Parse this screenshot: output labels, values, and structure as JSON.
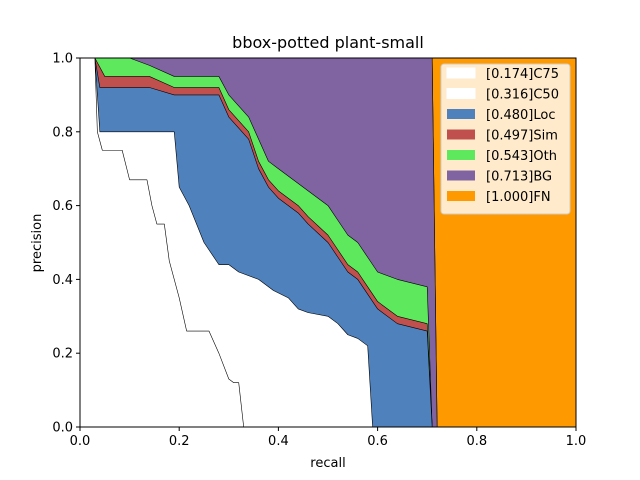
{
  "chart_data": {
    "type": "area",
    "title": "bbox-potted plant-small",
    "xlabel": "recall",
    "ylabel": "precision",
    "xlim": [
      0,
      1
    ],
    "ylim": [
      0,
      1
    ],
    "xticks": [
      "0.0",
      "0.2",
      "0.4",
      "0.6",
      "0.8",
      "1.0"
    ],
    "yticks": [
      "0.0",
      "0.2",
      "0.4",
      "0.6",
      "0.8",
      "1.0"
    ],
    "grid": false,
    "legend_position": "top-right",
    "series": [
      {
        "name": "[0.174]C75",
        "color": "#ffffff",
        "points": [
          [
            0.03,
            1.0
          ],
          [
            0.035,
            0.8
          ],
          [
            0.045,
            0.75
          ],
          [
            0.085,
            0.75
          ],
          [
            0.1,
            0.67
          ],
          [
            0.135,
            0.67
          ],
          [
            0.145,
            0.6
          ],
          [
            0.155,
            0.55
          ],
          [
            0.17,
            0.55
          ],
          [
            0.18,
            0.45
          ],
          [
            0.2,
            0.35
          ],
          [
            0.215,
            0.26
          ],
          [
            0.26,
            0.26
          ],
          [
            0.28,
            0.2
          ],
          [
            0.3,
            0.13
          ],
          [
            0.31,
            0.12
          ],
          [
            0.32,
            0.12
          ],
          [
            0.33,
            0.0
          ]
        ]
      },
      {
        "name": "[0.316]C50",
        "color": "#ffffff",
        "points": [
          [
            0.03,
            1.0
          ],
          [
            0.04,
            0.8
          ],
          [
            0.19,
            0.8
          ],
          [
            0.2,
            0.65
          ],
          [
            0.22,
            0.6
          ],
          [
            0.25,
            0.5
          ],
          [
            0.28,
            0.44
          ],
          [
            0.3,
            0.44
          ],
          [
            0.32,
            0.42
          ],
          [
            0.36,
            0.4
          ],
          [
            0.39,
            0.37
          ],
          [
            0.42,
            0.35
          ],
          [
            0.44,
            0.32
          ],
          [
            0.46,
            0.31
          ],
          [
            0.5,
            0.3
          ],
          [
            0.52,
            0.28
          ],
          [
            0.54,
            0.25
          ],
          [
            0.56,
            0.24
          ],
          [
            0.58,
            0.22
          ],
          [
            0.59,
            0.0
          ]
        ]
      },
      {
        "name": "[0.480]Loc",
        "color": "#4f81bd",
        "points": [
          [
            0.03,
            1.0
          ],
          [
            0.04,
            0.92
          ],
          [
            0.14,
            0.92
          ],
          [
            0.19,
            0.9
          ],
          [
            0.28,
            0.9
          ],
          [
            0.3,
            0.84
          ],
          [
            0.34,
            0.78
          ],
          [
            0.36,
            0.7
          ],
          [
            0.38,
            0.65
          ],
          [
            0.4,
            0.62
          ],
          [
            0.44,
            0.58
          ],
          [
            0.46,
            0.55
          ],
          [
            0.5,
            0.5
          ],
          [
            0.52,
            0.46
          ],
          [
            0.54,
            0.42
          ],
          [
            0.56,
            0.4
          ],
          [
            0.58,
            0.36
          ],
          [
            0.6,
            0.32
          ],
          [
            0.64,
            0.28
          ],
          [
            0.7,
            0.26
          ],
          [
            0.71,
            0.0
          ]
        ]
      },
      {
        "name": "[0.497]Sim",
        "color": "#c0504d",
        "points": [
          [
            0.03,
            1.0
          ],
          [
            0.05,
            0.95
          ],
          [
            0.14,
            0.95
          ],
          [
            0.19,
            0.92
          ],
          [
            0.28,
            0.92
          ],
          [
            0.3,
            0.86
          ],
          [
            0.34,
            0.8
          ],
          [
            0.36,
            0.72
          ],
          [
            0.38,
            0.67
          ],
          [
            0.4,
            0.64
          ],
          [
            0.44,
            0.6
          ],
          [
            0.46,
            0.57
          ],
          [
            0.5,
            0.52
          ],
          [
            0.52,
            0.48
          ],
          [
            0.54,
            0.44
          ],
          [
            0.56,
            0.42
          ],
          [
            0.58,
            0.38
          ],
          [
            0.6,
            0.34
          ],
          [
            0.64,
            0.3
          ],
          [
            0.7,
            0.28
          ],
          [
            0.71,
            0.0
          ]
        ]
      },
      {
        "name": "[0.543]Oth",
        "color": "#5ee85e",
        "points": [
          [
            0.03,
            1.0
          ],
          [
            0.1,
            1.0
          ],
          [
            0.14,
            0.98
          ],
          [
            0.19,
            0.95
          ],
          [
            0.28,
            0.95
          ],
          [
            0.3,
            0.9
          ],
          [
            0.34,
            0.84
          ],
          [
            0.36,
            0.78
          ],
          [
            0.38,
            0.72
          ],
          [
            0.4,
            0.7
          ],
          [
            0.44,
            0.66
          ],
          [
            0.46,
            0.64
          ],
          [
            0.5,
            0.6
          ],
          [
            0.52,
            0.56
          ],
          [
            0.54,
            0.52
          ],
          [
            0.56,
            0.5
          ],
          [
            0.58,
            0.46
          ],
          [
            0.6,
            0.42
          ],
          [
            0.64,
            0.4
          ],
          [
            0.7,
            0.38
          ],
          [
            0.71,
            0.0
          ]
        ]
      },
      {
        "name": "[0.713]BG",
        "color": "#8064a2",
        "points": [
          [
            0.03,
            1.0
          ],
          [
            0.71,
            1.0
          ],
          [
            0.72,
            0.0
          ]
        ]
      },
      {
        "name": "[1.000]FN",
        "color": "#ff9900",
        "points": [
          [
            0.71,
            1.0
          ],
          [
            1.0,
            1.0
          ],
          [
            1.0,
            0.0
          ],
          [
            0.72,
            0.0
          ]
        ]
      }
    ]
  }
}
